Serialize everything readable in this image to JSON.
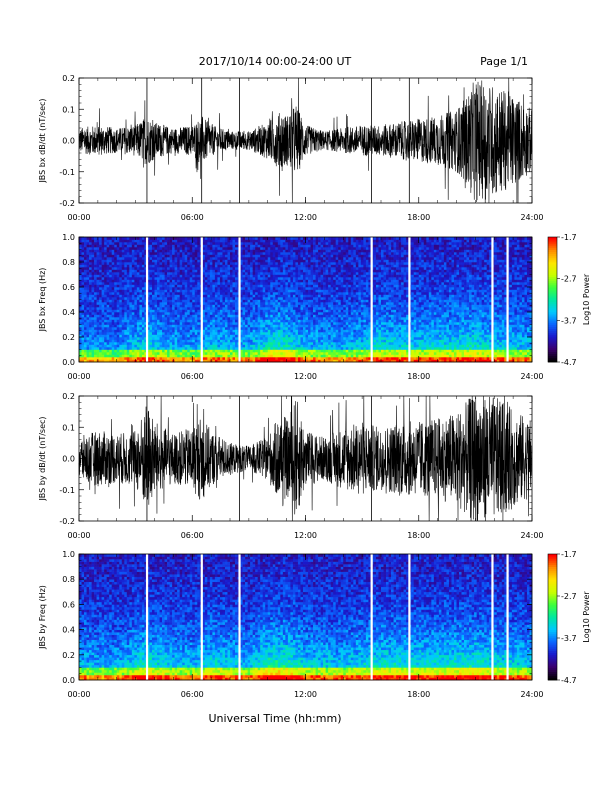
{
  "header": {
    "date_range": "2017/10/14  00:00-24:00 UT",
    "page": "Page 1/1"
  },
  "footer": {
    "xlabel": "Universal Time (hh:mm)"
  },
  "colors": {
    "trace": "#000000",
    "colorbar_stops": [
      "#000000",
      "#3b006f",
      "#1a1acc",
      "#0a64ff",
      "#00c8ff",
      "#00e8a0",
      "#3cff3c",
      "#c8ff00",
      "#ffe600",
      "#ff8c00",
      "#ff0000"
    ]
  },
  "chart_data": [
    {
      "type": "line",
      "ylabel": "JBS bx dB/dt (nT/sec)",
      "xlim": [
        "00:00",
        "24:00"
      ],
      "ylim": [
        -0.2,
        0.2
      ],
      "x_ticks": [
        "00:00",
        "06:00",
        "12:00",
        "18:00",
        "24:00"
      ],
      "y_ticks": [
        "0.2",
        "0.1",
        "0.0",
        "-0.1",
        "-0.2"
      ],
      "markers_hours": [
        3.6,
        6.5,
        8.5,
        15.5,
        17.5
      ],
      "envelope": {
        "hours": [
          0,
          1,
          2,
          3,
          3.6,
          4,
          5,
          6,
          6.5,
          7,
          8,
          9,
          10,
          10.8,
          11,
          11.5,
          12,
          13,
          14,
          15,
          16,
          17,
          18,
          19,
          20,
          20.5,
          21,
          22,
          23,
          24
        ],
        "amplitude": [
          0.04,
          0.05,
          0.04,
          0.05,
          0.08,
          0.06,
          0.04,
          0.05,
          0.08,
          0.05,
          0.03,
          0.03,
          0.06,
          0.1,
          0.08,
          0.12,
          0.05,
          0.03,
          0.04,
          0.05,
          0.05,
          0.06,
          0.07,
          0.08,
          0.1,
          0.14,
          0.2,
          0.18,
          0.15,
          0.1
        ]
      }
    },
    {
      "type": "heatmap",
      "ylabel": "JBS bx Freq (Hz)",
      "xlim": [
        "00:00",
        "24:00"
      ],
      "ylim": [
        0.0,
        1.0
      ],
      "x_ticks": [
        "00:00",
        "06:00",
        "12:00",
        "18:00",
        "24:00"
      ],
      "y_ticks": [
        "1.0",
        "0.8",
        "0.6",
        "0.4",
        "0.2",
        "0.0"
      ],
      "colorbar": {
        "label": "Log10 Power",
        "ticks": [
          "-1.7",
          "-2.7",
          "-3.7",
          "-4.7"
        ],
        "range": [
          -4.7,
          -1.7
        ]
      },
      "gap_hours": [
        3.6,
        6.5,
        8.5,
        15.5,
        17.5,
        21.9,
        22.7
      ],
      "activity": {
        "hours": [
          0,
          2,
          3.6,
          4,
          6,
          7,
          9,
          10,
          11,
          12,
          14,
          16,
          18,
          20,
          21,
          22,
          24
        ],
        "level": [
          0.35,
          0.3,
          0.6,
          0.5,
          0.35,
          0.5,
          0.4,
          0.65,
          0.7,
          0.45,
          0.4,
          0.6,
          0.55,
          0.6,
          0.65,
          0.55,
          0.45
        ]
      }
    },
    {
      "type": "line",
      "ylabel": "JBS by dB/dt (nT/sec)",
      "xlim": [
        "00:00",
        "24:00"
      ],
      "ylim": [
        -0.2,
        0.2
      ],
      "x_ticks": [
        "00:00",
        "06:00",
        "12:00",
        "18:00",
        "24:00"
      ],
      "y_ticks": [
        "0.2",
        "0.1",
        "0.0",
        "-0.1",
        "-0.2"
      ],
      "markers_hours": [
        3.6,
        8.5,
        15.5
      ],
      "envelope": {
        "hours": [
          0,
          1,
          2,
          3,
          3.6,
          4,
          5,
          6,
          6.5,
          7,
          8,
          9,
          10,
          10.8,
          11,
          11.5,
          12,
          13,
          14,
          15,
          16,
          17,
          18,
          19,
          20,
          20.5,
          21,
          22,
          23,
          24
        ],
        "amplitude": [
          0.07,
          0.09,
          0.08,
          0.09,
          0.18,
          0.12,
          0.08,
          0.1,
          0.14,
          0.09,
          0.05,
          0.04,
          0.07,
          0.16,
          0.12,
          0.2,
          0.09,
          0.07,
          0.1,
          0.12,
          0.1,
          0.12,
          0.12,
          0.13,
          0.15,
          0.18,
          0.22,
          0.2,
          0.16,
          0.12
        ]
      }
    },
    {
      "type": "heatmap",
      "ylabel": "JBS by Freq (Hz)",
      "xlim": [
        "00:00",
        "24:00"
      ],
      "ylim": [
        0.0,
        1.0
      ],
      "x_ticks": [
        "00:00",
        "06:00",
        "12:00",
        "18:00",
        "24:00"
      ],
      "y_ticks": [
        "1.0",
        "0.8",
        "0.6",
        "0.4",
        "0.2",
        "0.0"
      ],
      "colorbar": {
        "label": "Log10 Power",
        "ticks": [
          "-1.7",
          "-2.7",
          "-3.7",
          "-4.7"
        ],
        "range": [
          -4.7,
          -1.7
        ]
      },
      "gap_hours": [
        3.6,
        6.5,
        8.5,
        15.5,
        17.5,
        21.9,
        22.7
      ],
      "activity": {
        "hours": [
          0,
          2,
          3.6,
          4,
          6,
          7,
          9,
          10,
          11,
          12,
          14,
          16,
          18,
          20,
          21,
          22,
          24
        ],
        "level": [
          0.45,
          0.4,
          0.7,
          0.6,
          0.45,
          0.6,
          0.45,
          0.75,
          0.75,
          0.55,
          0.5,
          0.65,
          0.6,
          0.65,
          0.7,
          0.6,
          0.5
        ]
      }
    }
  ]
}
